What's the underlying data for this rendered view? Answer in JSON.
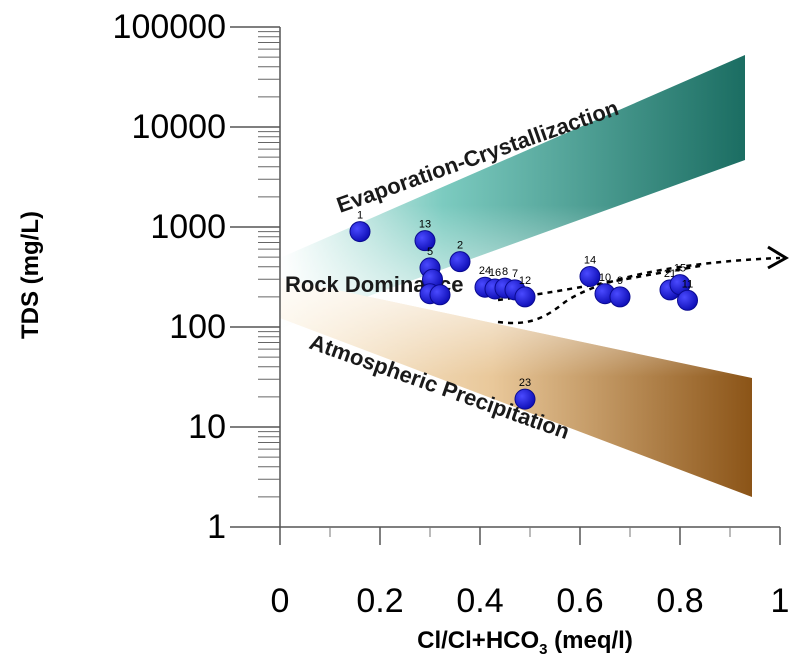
{
  "chart_data": {
    "type": "scatter",
    "title": "",
    "xlabel_main": "Cl/Cl+HCO",
    "xlabel_sub": "3",
    "xlabel_unit": " (meq/l)",
    "ylabel": "TDS (mg/L)",
    "xlim": [
      0,
      1
    ],
    "ylim": [
      1,
      100000
    ],
    "yscale": "log",
    "x_ticks": [
      {
        "value": 0,
        "label": "0"
      },
      {
        "value": 0.2,
        "label": "0.2"
      },
      {
        "value": 0.4,
        "label": "0.4"
      },
      {
        "value": 0.6,
        "label": "0.6"
      },
      {
        "value": 0.8,
        "label": "0.8"
      },
      {
        "value": 1,
        "label": "1"
      }
    ],
    "y_ticks": [
      {
        "value": 1,
        "label": "1"
      },
      {
        "value": 10,
        "label": "10"
      },
      {
        "value": 100,
        "label": "100"
      },
      {
        "value": 1000,
        "label": "1000"
      },
      {
        "value": 10000,
        "label": "10000"
      },
      {
        "value": 100000,
        "label": "100000"
      }
    ],
    "regions": [
      {
        "name": "Evaporation-Crystallizaction",
        "color_start": "#ffffff",
        "color_end": "#1b6d62"
      },
      {
        "name": "Rock Dominance",
        "color_start": "#ffffff",
        "color_end": "#ffffff"
      },
      {
        "name": "Atmospheric Precipitation",
        "color_start": "#fbefd8",
        "color_end": "#8b5417"
      }
    ],
    "marker_color": "#1414d8",
    "points": [
      {
        "label": "1",
        "x": 0.16,
        "y": 900
      },
      {
        "label": "13",
        "x": 0.29,
        "y": 730
      },
      {
        "label": "5",
        "x": 0.3,
        "y": 390
      },
      {
        "label": "",
        "x": 0.305,
        "y": 300
      },
      {
        "label": "",
        "x": 0.3,
        "y": 215
      },
      {
        "label": "",
        "x": 0.32,
        "y": 210
      },
      {
        "label": "2",
        "x": 0.36,
        "y": 450
      },
      {
        "label": "24",
        "x": 0.41,
        "y": 250
      },
      {
        "label": "16",
        "x": 0.43,
        "y": 240
      },
      {
        "label": "8",
        "x": 0.45,
        "y": 245
      },
      {
        "label": "7",
        "x": 0.47,
        "y": 235
      },
      {
        "label": "12",
        "x": 0.49,
        "y": 200
      },
      {
        "label": "23",
        "x": 0.49,
        "y": 19
      },
      {
        "label": "14",
        "x": 0.62,
        "y": 320
      },
      {
        "label": "10",
        "x": 0.65,
        "y": 215
      },
      {
        "label": "9",
        "x": 0.68,
        "y": 200
      },
      {
        "label": "21",
        "x": 0.78,
        "y": 235
      },
      {
        "label": "15",
        "x": 0.8,
        "y": 265
      },
      {
        "label": "11",
        "x": 0.815,
        "y": 185
      }
    ]
  }
}
